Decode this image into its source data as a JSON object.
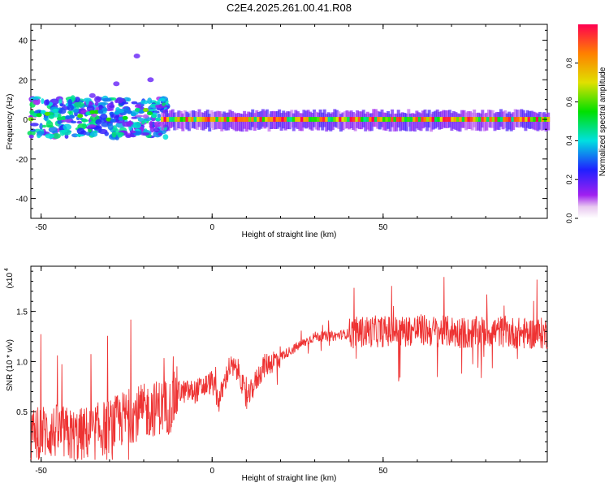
{
  "title": "C2E4.2025.261.00.41.R08",
  "spectrogram": {
    "chart_data": {
      "type": "heatmap",
      "xlabel": "Height of straight line (km)",
      "ylabel": "Frequency (Hz)",
      "xlim": [
        -53,
        98
      ],
      "ylim": [
        -50,
        48
      ],
      "x_ticks": [
        "-50",
        "0",
        "50"
      ],
      "y_ticks": [
        "40",
        "20",
        "0",
        "-20",
        "-40"
      ],
      "colorbar_label": "Normalized spectral amplitude",
      "colorbar_ticks": [
        "0.0",
        "0.2",
        "0.4",
        "0.6",
        "0.8"
      ],
      "description_points": {
        "tone_frequency_hz": 0,
        "band_start_km": -53,
        "band_end_km": 98,
        "strong_segments_km": [
          [
            -15,
            98
          ]
        ],
        "scattered_high_freq_points": [
          [
            -22,
            32
          ],
          [
            -18,
            20
          ],
          [
            -28,
            18
          ],
          [
            -35,
            12
          ]
        ]
      }
    }
  },
  "snr": {
    "chart_data": {
      "type": "line",
      "xlabel": "Height of straight line (km)",
      "ylabel": "SNR (10 * v/v)",
      "scale_label": "(x10",
      "scale_exponent": "4",
      "xlim": [
        -53,
        98
      ],
      "ylim": [
        0,
        1.95
      ],
      "x_ticks": [
        "-50",
        "0",
        "50"
      ],
      "y_ticks": [
        "1.5",
        "1.0",
        "0.5"
      ],
      "series": [
        {
          "color": "#ee3333",
          "x": [
            -53,
            -50,
            -45,
            -40,
            -35,
            -30,
            -25,
            -20,
            -15,
            -12,
            -10,
            -5,
            0,
            2,
            5,
            8,
            10,
            12,
            15,
            20,
            25,
            30,
            35,
            40,
            45,
            50,
            55,
            60,
            65,
            70,
            75,
            80,
            85,
            90,
            95,
            98
          ],
          "y": [
            0.25,
            0.3,
            0.3,
            0.25,
            0.3,
            0.35,
            0.45,
            0.5,
            0.55,
            0.55,
            0.7,
            0.7,
            0.8,
            0.6,
            0.95,
            0.9,
            0.6,
            0.75,
            0.95,
            1.05,
            1.15,
            1.25,
            1.25,
            1.28,
            1.3,
            1.3,
            1.3,
            1.32,
            1.3,
            1.3,
            1.28,
            1.3,
            1.3,
            1.28,
            1.28,
            1.28
          ]
        }
      ]
    }
  }
}
